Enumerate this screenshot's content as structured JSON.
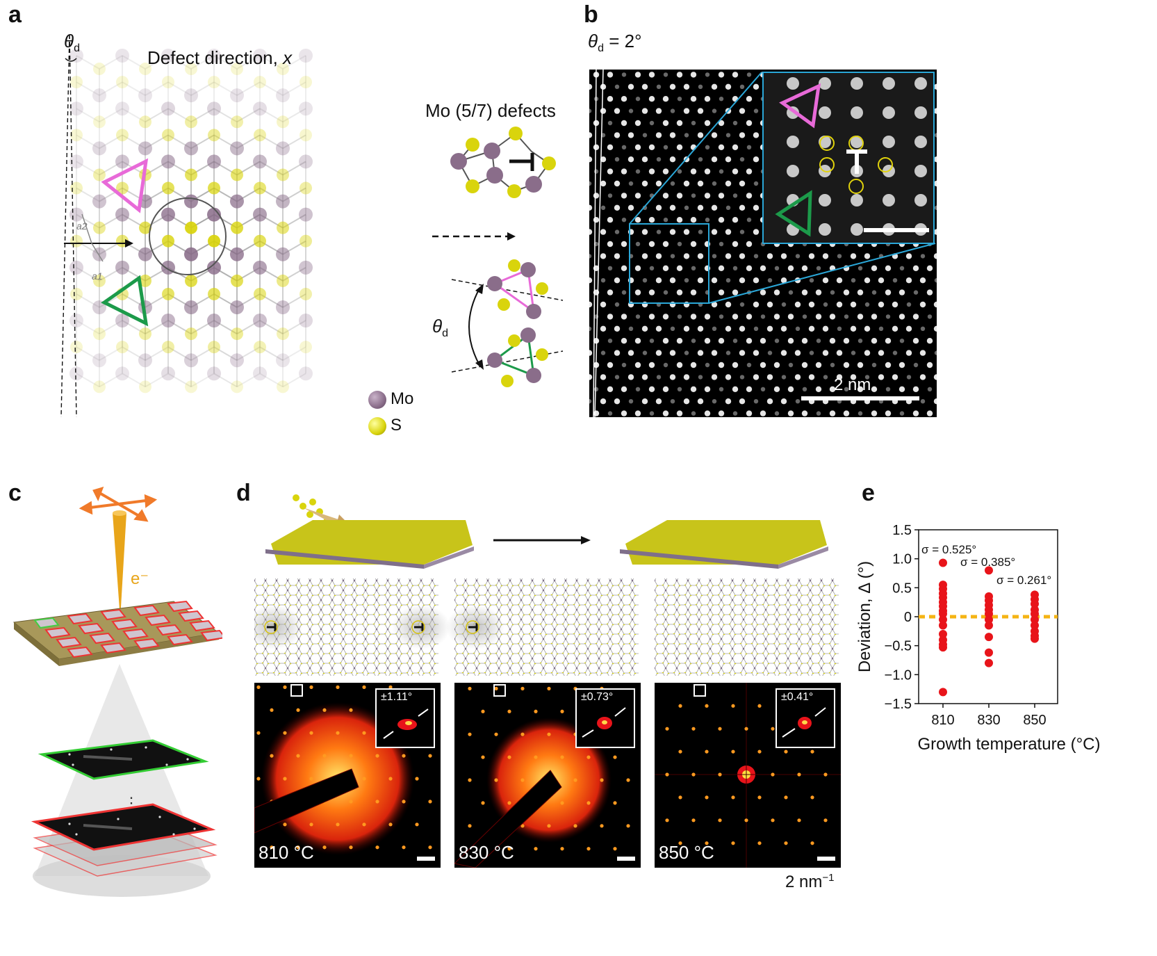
{
  "panels": {
    "a": {
      "label": "a",
      "theta_symbol": "θ",
      "theta_sub": "d",
      "defect_direction_label": "Defect direction, ",
      "defect_direction_var": "x",
      "lattice_vectors": [
        "a2",
        "a1"
      ],
      "mo_defects_label": "Mo (5/7) defects",
      "theta_d_rot": "θ",
      "theta_d_rot_sub": "d",
      "legend": [
        {
          "name": "Mo",
          "color": "#8a6d8a"
        },
        {
          "name": "S",
          "color": "#d9d40c"
        }
      ],
      "triangle_colors": {
        "pink": "#e86ad8",
        "green": "#1c9a4a"
      }
    },
    "b": {
      "label": "b",
      "theta_label": "θ",
      "theta_sub": "d",
      "theta_value": " = 2°",
      "scale_bar": "2 nm",
      "inset_border_color": "#2aa7d8"
    },
    "c": {
      "label": "c",
      "electron_label": "e⁻",
      "ellipsis": "⋮",
      "colors": {
        "beam": "#e8a51a",
        "arrows": "#f07a2a",
        "grid_red": "#e33",
        "grid_green": "#4c4"
      }
    },
    "d": {
      "label": "d",
      "patterns": [
        {
          "temp": "810 °C",
          "spread": "±1.11°"
        },
        {
          "temp": "830 °C",
          "spread": "±0.73°"
        },
        {
          "temp": "850 °C",
          "spread": "±0.41°"
        }
      ],
      "scale_label": "2 nm",
      "scale_exp": "−1"
    },
    "e": {
      "label": "e"
    }
  },
  "chart_data": {
    "type": "scatter",
    "ylabel": "Deviation, Δ (°)",
    "xlabel": "Growth temperature (°C)",
    "categories": [
      "810",
      "830",
      "850"
    ],
    "ylim": [
      -1.5,
      1.5
    ],
    "yticks": [
      "1.5",
      "1.0",
      "0.5",
      "0",
      "−0.5",
      "−1.0",
      "−1.5"
    ],
    "ytick_values": [
      1.5,
      1.0,
      0.5,
      0,
      -0.5,
      -1.0,
      -1.5
    ],
    "reference_line": 0,
    "annotations": [
      "σ = 0.525°",
      "σ = 0.385°",
      "σ = 0.261°"
    ],
    "point_color": "#e8141a",
    "line_color": "#f5b414",
    "series": [
      {
        "x": "810",
        "values": [
          0.93,
          0.55,
          0.48,
          0.4,
          0.33,
          0.25,
          0.18,
          0.1,
          0.05,
          -0.05,
          -0.15,
          -0.3,
          -0.4,
          -0.48,
          -0.53,
          -1.3
        ]
      },
      {
        "x": "830",
        "values": [
          0.8,
          0.35,
          0.28,
          0.2,
          0.12,
          0.05,
          -0.05,
          -0.15,
          -0.35,
          -0.62,
          -0.8
        ]
      },
      {
        "x": "850",
        "values": [
          0.38,
          0.3,
          0.22,
          0.12,
          0.05,
          -0.05,
          -0.15,
          -0.25,
          -0.33,
          -0.38
        ]
      }
    ]
  }
}
